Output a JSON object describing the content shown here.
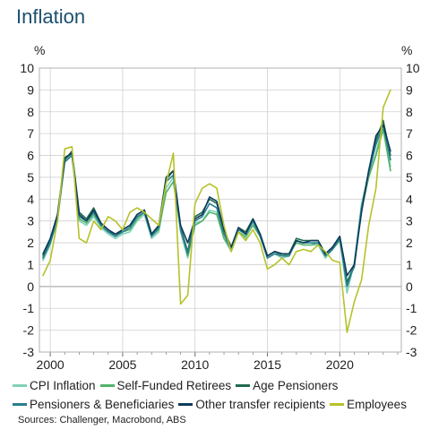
{
  "title": "Inflation",
  "sources": "Sources: Challenger, Macrobond, ABS",
  "chart_data": {
    "type": "line",
    "title": "Inflation",
    "y_unit_left": "%",
    "y_unit_right": "%",
    "ylim": [
      -3,
      10
    ],
    "yticks": [
      "10",
      "9",
      "8",
      "7",
      "6",
      "5",
      "4",
      "3",
      "2",
      "1",
      "0",
      "-1",
      "-2",
      "-3"
    ],
    "xlim": [
      1999.25,
      2024.25
    ],
    "xticks": [
      "2000",
      "2005",
      "2010",
      "2015",
      "2020"
    ],
    "grid": true,
    "legend_position": "bottom",
    "x": [
      1999.5,
      2000.0,
      2000.5,
      2001.0,
      2001.5,
      2002.0,
      2002.5,
      2003.0,
      2003.5,
      2004.0,
      2004.5,
      2005.0,
      2005.5,
      2006.0,
      2006.5,
      2007.0,
      2007.5,
      2008.0,
      2008.5,
      2009.0,
      2009.5,
      2010.0,
      2010.5,
      2011.0,
      2011.5,
      2012.0,
      2012.5,
      2013.0,
      2013.5,
      2014.0,
      2014.5,
      2015.0,
      2015.5,
      2016.0,
      2016.5,
      2017.0,
      2017.5,
      2018.0,
      2018.5,
      2019.0,
      2019.5,
      2020.0,
      2020.5,
      2021.0,
      2021.5,
      2022.0,
      2022.5,
      2023.0,
      2023.5
    ],
    "series": [
      {
        "name": "CPI Inflation",
        "color": "#7fd1b9",
        "values": [
          1.2,
          1.9,
          3.2,
          5.9,
          6.0,
          3.0,
          2.8,
          3.2,
          2.7,
          2.4,
          2.2,
          2.4,
          2.5,
          3.0,
          3.3,
          2.2,
          2.5,
          4.5,
          5.0,
          2.5,
          1.3,
          2.9,
          3.0,
          3.5,
          3.4,
          2.2,
          1.6,
          2.5,
          2.2,
          2.9,
          2.3,
          1.3,
          1.5,
          1.3,
          1.4,
          2.1,
          1.9,
          1.9,
          1.9,
          1.3,
          1.7,
          2.2,
          -0.3,
          1.1,
          3.8,
          5.1,
          6.1,
          7.5,
          5.5
        ]
      },
      {
        "name": "Self-Funded Retirees",
        "color": "#52b36a",
        "values": [
          1.3,
          2.0,
          3.0,
          5.8,
          6.1,
          3.1,
          2.9,
          3.3,
          2.8,
          2.5,
          2.3,
          2.5,
          2.6,
          3.1,
          3.4,
          2.3,
          2.6,
          4.3,
          4.8,
          2.6,
          1.4,
          2.8,
          3.0,
          3.4,
          3.3,
          2.2,
          1.7,
          2.5,
          2.3,
          2.8,
          2.3,
          1.4,
          1.6,
          1.4,
          1.5,
          2.0,
          1.9,
          1.9,
          2.0,
          1.4,
          1.7,
          2.1,
          0.2,
          1.0,
          3.5,
          5.0,
          6.0,
          7.2,
          5.3
        ]
      },
      {
        "name": "Age Pensioners",
        "color": "#1f6b4d",
        "values": [
          1.4,
          2.1,
          3.2,
          5.8,
          6.2,
          3.4,
          3.1,
          3.6,
          2.9,
          2.6,
          2.3,
          2.6,
          2.8,
          3.3,
          3.5,
          2.4,
          2.8,
          5.0,
          5.3,
          2.7,
          1.6,
          3.2,
          3.4,
          4.0,
          3.8,
          2.6,
          1.8,
          2.7,
          2.5,
          3.1,
          2.4,
          1.4,
          1.6,
          1.5,
          1.5,
          2.2,
          2.1,
          2.1,
          2.1,
          1.5,
          1.8,
          2.3,
          0.2,
          0.9,
          3.6,
          5.3,
          6.7,
          7.6,
          6.0
        ]
      },
      {
        "name": "Pensioners & Beneficiaries",
        "color": "#2a7d8f",
        "values": [
          1.3,
          2.0,
          3.1,
          5.7,
          6.0,
          3.2,
          3.0,
          3.4,
          2.8,
          2.5,
          2.3,
          2.5,
          2.7,
          3.2,
          3.4,
          2.3,
          2.7,
          4.8,
          5.1,
          2.6,
          1.5,
          3.0,
          3.2,
          3.8,
          3.6,
          2.4,
          1.7,
          2.6,
          2.4,
          3.0,
          2.3,
          1.3,
          1.5,
          1.4,
          1.4,
          2.1,
          2.0,
          2.0,
          2.0,
          1.4,
          1.7,
          2.2,
          0.0,
          1.0,
          3.6,
          5.2,
          6.5,
          7.4,
          5.8
        ]
      },
      {
        "name": "Other transfer recipients",
        "color": "#0e3b5c",
        "values": [
          1.5,
          2.2,
          3.3,
          5.9,
          6.1,
          3.3,
          3.0,
          3.5,
          2.9,
          2.6,
          2.4,
          2.6,
          2.8,
          3.3,
          3.5,
          2.4,
          2.8,
          4.9,
          5.3,
          2.8,
          2.0,
          3.1,
          3.3,
          4.1,
          3.9,
          2.6,
          1.8,
          2.7,
          2.4,
          3.1,
          2.4,
          1.4,
          1.6,
          1.5,
          1.5,
          2.1,
          2.0,
          2.1,
          2.1,
          1.5,
          1.8,
          2.3,
          0.5,
          1.0,
          3.4,
          5.3,
          6.9,
          7.4,
          6.2
        ]
      },
      {
        "name": "Employees",
        "color": "#b6c22a",
        "values": [
          0.5,
          1.2,
          3.0,
          6.3,
          6.4,
          2.2,
          2.0,
          3.0,
          2.6,
          3.2,
          3.0,
          2.6,
          3.4,
          3.6,
          3.4,
          3.1,
          2.8,
          4.7,
          6.1,
          -0.8,
          -0.4,
          3.8,
          4.5,
          4.7,
          4.5,
          2.8,
          1.6,
          2.5,
          2.1,
          2.6,
          2.0,
          0.8,
          1.0,
          1.3,
          1.0,
          1.6,
          1.7,
          1.6,
          1.9,
          1.6,
          1.2,
          1.1,
          -2.1,
          -0.7,
          0.3,
          2.8,
          4.5,
          8.2,
          9.0
        ]
      }
    ]
  }
}
